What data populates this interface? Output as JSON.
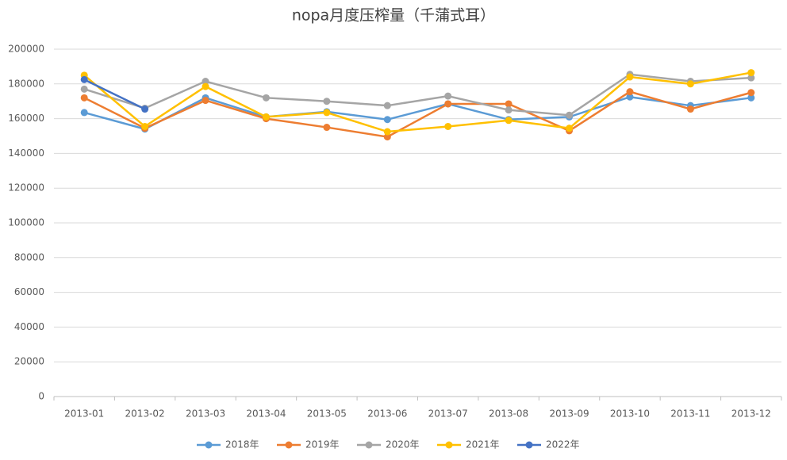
{
  "chart_data": {
    "type": "line",
    "title": "nopa月度压榨量（千蒲式耳）",
    "categories": [
      "2013-01",
      "2013-02",
      "2013-03",
      "2013-04",
      "2013-05",
      "2013-06",
      "2013-07",
      "2013-08",
      "2013-09",
      "2013-10",
      "2013-11",
      "2013-12"
    ],
    "series": [
      {
        "name": "2018年",
        "color": "#5b9bd5",
        "values": [
          163500,
          154000,
          172000,
          161000,
          164000,
          159500,
          168500,
          159500,
          161000,
          172500,
          167500,
          172000
        ]
      },
      {
        "name": "2019年",
        "color": "#ed7d31",
        "values": [
          172000,
          154500,
          170500,
          160000,
          155000,
          149500,
          168500,
          168500,
          153000,
          175500,
          165500,
          175000
        ]
      },
      {
        "name": "2020年",
        "color": "#a5a5a5",
        "values": [
          177000,
          166000,
          181500,
          172000,
          170000,
          167500,
          173000,
          165000,
          162000,
          185500,
          181500,
          183500
        ]
      },
      {
        "name": "2021年",
        "color": "#ffc000",
        "values": [
          185000,
          155500,
          178500,
          161000,
          163500,
          152500,
          155500,
          159000,
          154500,
          184000,
          180000,
          186500
        ]
      },
      {
        "name": "2022年",
        "color": "#4472c4",
        "values": [
          182500,
          165500,
          null,
          null,
          null,
          null,
          null,
          null,
          null,
          null,
          null,
          null
        ]
      }
    ],
    "ylim": [
      0,
      200000
    ],
    "yticks": [
      0,
      20000,
      40000,
      60000,
      80000,
      100000,
      120000,
      140000,
      160000,
      180000,
      200000
    ],
    "grid": true,
    "legend": "bottom"
  }
}
